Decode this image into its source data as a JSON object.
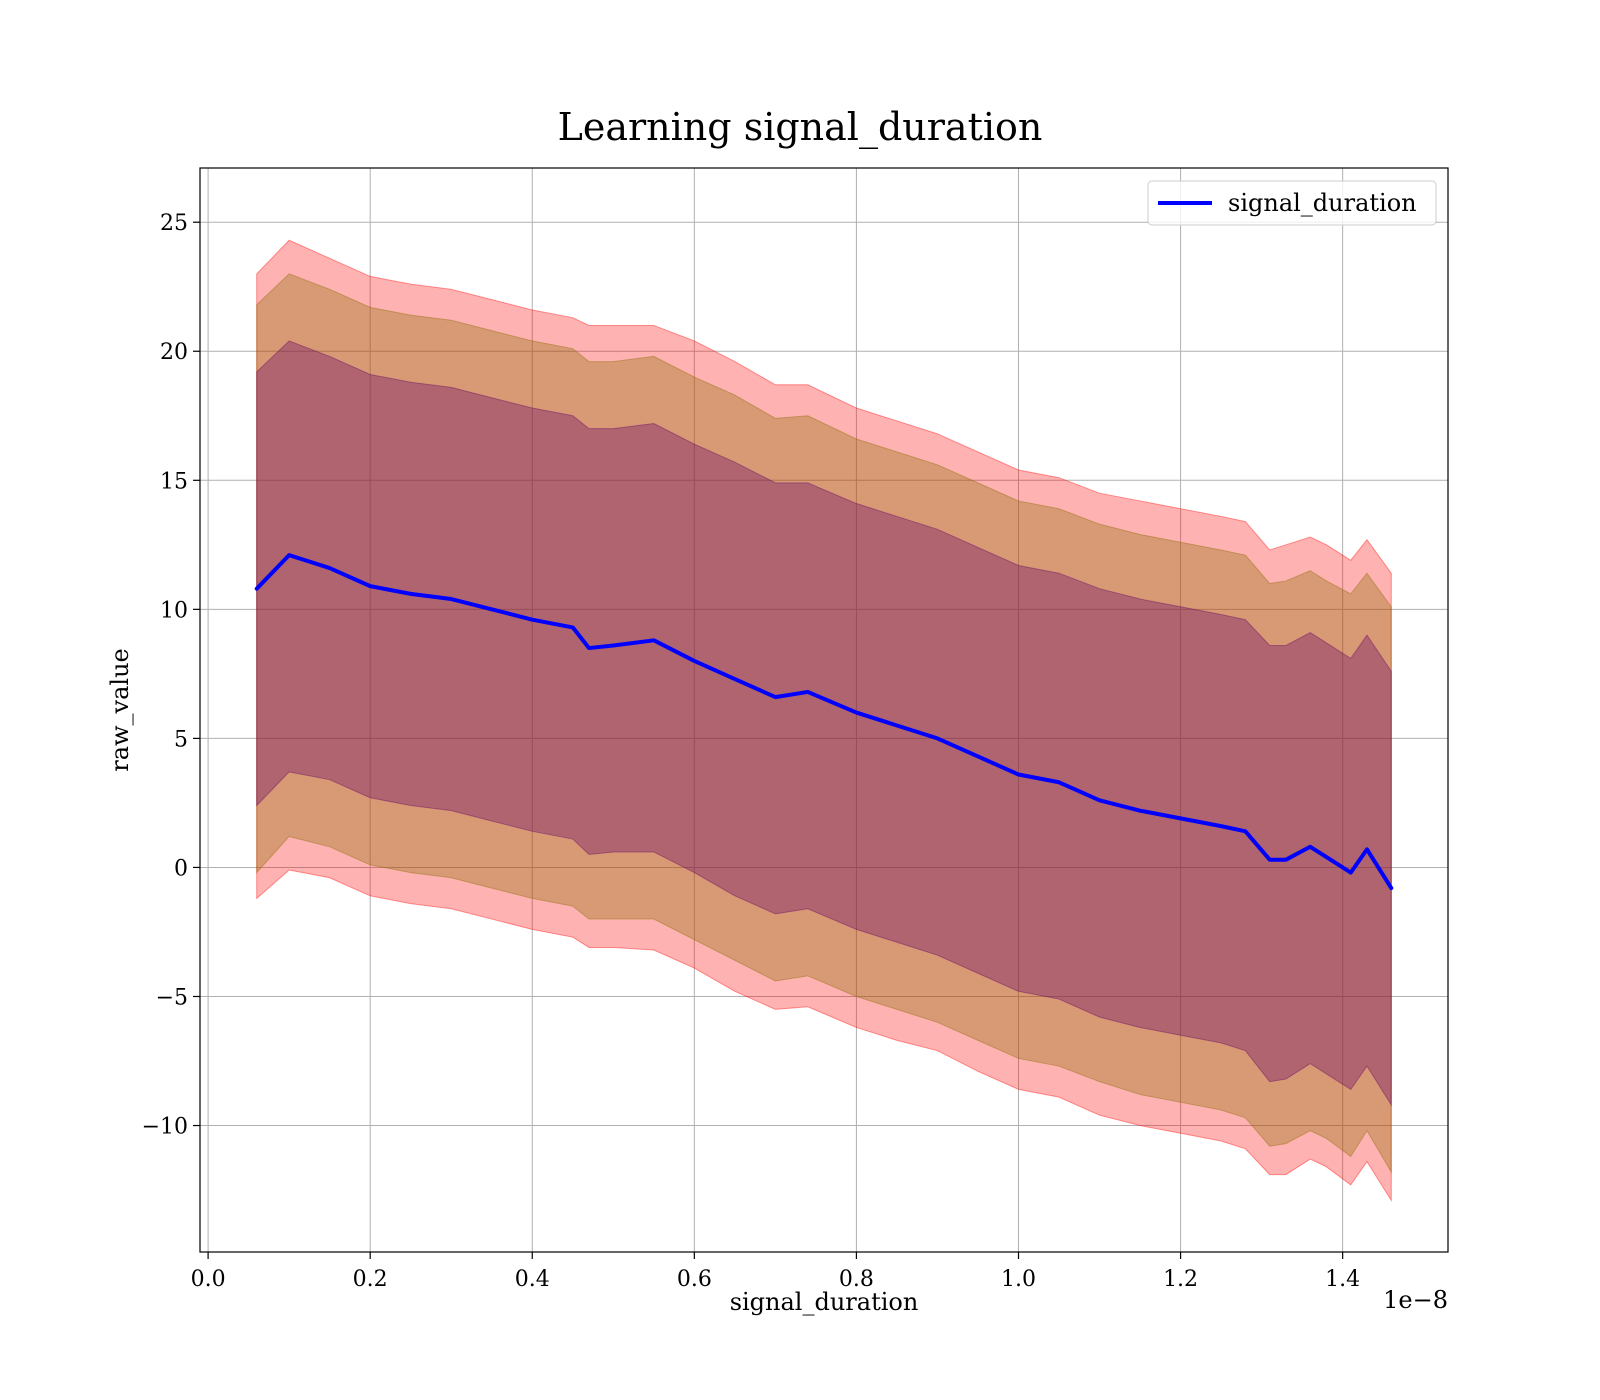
{
  "chart_data": {
    "type": "line",
    "title": "Learning signal_duration",
    "xlabel": "signal_duration",
    "ylabel": "raw_value",
    "x_scale_label": "1e−8",
    "xlim": [
      -0.01,
      1.53
    ],
    "ylim": [
      -14.9,
      27.1
    ],
    "xticks": [
      0.0,
      0.2,
      0.4,
      0.6,
      0.8,
      1.0,
      1.2,
      1.4
    ],
    "xtick_labels": [
      "0.0",
      "0.2",
      "0.4",
      "0.6",
      "0.8",
      "1.0",
      "1.2",
      "1.4"
    ],
    "yticks": [
      -10,
      -5,
      0,
      5,
      10,
      15,
      20,
      25
    ],
    "ytick_labels": [
      "−10",
      "−5",
      "0",
      "5",
      "10",
      "15",
      "20",
      "25"
    ],
    "grid": true,
    "legend_position": "top-right",
    "series": [
      {
        "name": "signal_duration",
        "color": "#0000ff",
        "x": [
          0.06,
          0.1,
          0.15,
          0.2,
          0.25,
          0.3,
          0.35,
          0.4,
          0.45,
          0.47,
          0.5,
          0.55,
          0.6,
          0.65,
          0.7,
          0.74,
          0.8,
          0.85,
          0.9,
          0.95,
          1.0,
          1.05,
          1.1,
          1.15,
          1.2,
          1.25,
          1.28,
          1.31,
          1.33,
          1.36,
          1.38,
          1.41,
          1.43,
          1.46
        ],
        "y": [
          10.8,
          12.1,
          11.6,
          10.9,
          10.6,
          10.4,
          10.0,
          9.6,
          9.3,
          8.5,
          8.6,
          8.8,
          8.0,
          7.3,
          6.6,
          6.8,
          6.0,
          5.5,
          5.0,
          4.3,
          3.6,
          3.3,
          2.6,
          2.2,
          1.9,
          1.6,
          1.4,
          0.3,
          0.3,
          0.8,
          0.4,
          -0.2,
          0.7,
          -0.8
        ]
      }
    ],
    "bands": [
      {
        "name": "outer",
        "color": "#ff0000",
        "opacity": 0.3,
        "x": [
          0.06,
          0.1,
          0.15,
          0.2,
          0.25,
          0.3,
          0.35,
          0.4,
          0.45,
          0.47,
          0.5,
          0.55,
          0.6,
          0.65,
          0.7,
          0.74,
          0.8,
          0.85,
          0.9,
          0.95,
          1.0,
          1.05,
          1.1,
          1.15,
          1.2,
          1.25,
          1.28,
          1.31,
          1.33,
          1.36,
          1.38,
          1.41,
          1.43,
          1.46
        ],
        "upper": [
          23.0,
          24.3,
          23.6,
          22.9,
          22.6,
          22.4,
          22.0,
          21.6,
          21.3,
          21.0,
          21.0,
          21.0,
          20.4,
          19.6,
          18.7,
          18.7,
          17.8,
          17.3,
          16.8,
          16.1,
          15.4,
          15.1,
          14.5,
          14.2,
          13.9,
          13.6,
          13.4,
          12.3,
          12.5,
          12.8,
          12.5,
          11.9,
          12.7,
          11.4
        ],
        "lower": [
          -1.2,
          -0.1,
          -0.4,
          -1.1,
          -1.4,
          -1.6,
          -2.0,
          -2.4,
          -2.7,
          -3.1,
          -3.1,
          -3.2,
          -3.9,
          -4.8,
          -5.5,
          -5.4,
          -6.2,
          -6.7,
          -7.1,
          -7.9,
          -8.6,
          -8.9,
          -9.6,
          -10.0,
          -10.3,
          -10.6,
          -10.9,
          -11.9,
          -11.9,
          -11.3,
          -11.6,
          -12.3,
          -11.4,
          -12.9
        ]
      },
      {
        "name": "middle",
        "color": "#8c6c00",
        "opacity": 0.35,
        "x": [
          0.06,
          0.1,
          0.15,
          0.2,
          0.25,
          0.3,
          0.35,
          0.4,
          0.45,
          0.47,
          0.5,
          0.55,
          0.6,
          0.65,
          0.7,
          0.74,
          0.8,
          0.85,
          0.9,
          0.95,
          1.0,
          1.05,
          1.1,
          1.15,
          1.2,
          1.25,
          1.28,
          1.31,
          1.33,
          1.36,
          1.38,
          1.41,
          1.43,
          1.46
        ],
        "upper": [
          21.8,
          23.0,
          22.4,
          21.7,
          21.4,
          21.2,
          20.8,
          20.4,
          20.1,
          19.6,
          19.6,
          19.8,
          19.0,
          18.3,
          17.4,
          17.5,
          16.6,
          16.1,
          15.6,
          14.9,
          14.2,
          13.9,
          13.3,
          12.9,
          12.6,
          12.3,
          12.1,
          11.0,
          11.1,
          11.5,
          11.1,
          10.6,
          11.4,
          10.1
        ],
        "lower": [
          -0.2,
          1.2,
          0.8,
          0.1,
          -0.2,
          -0.4,
          -0.8,
          -1.2,
          -1.5,
          -2.0,
          -2.0,
          -2.0,
          -2.8,
          -3.6,
          -4.4,
          -4.2,
          -5.0,
          -5.5,
          -6.0,
          -6.7,
          -7.4,
          -7.7,
          -8.3,
          -8.8,
          -9.1,
          -9.4,
          -9.7,
          -10.8,
          -10.7,
          -10.2,
          -10.5,
          -11.2,
          -10.2,
          -11.8
        ]
      },
      {
        "name": "inner",
        "color": "#660066",
        "opacity": 0.35,
        "x": [
          0.06,
          0.1,
          0.15,
          0.2,
          0.25,
          0.3,
          0.35,
          0.4,
          0.45,
          0.47,
          0.5,
          0.55,
          0.6,
          0.65,
          0.7,
          0.74,
          0.8,
          0.85,
          0.9,
          0.95,
          1.0,
          1.05,
          1.1,
          1.15,
          1.2,
          1.25,
          1.28,
          1.31,
          1.33,
          1.36,
          1.38,
          1.41,
          1.43,
          1.46
        ],
        "upper": [
          19.2,
          20.4,
          19.8,
          19.1,
          18.8,
          18.6,
          18.2,
          17.8,
          17.5,
          17.0,
          17.0,
          17.2,
          16.4,
          15.7,
          14.9,
          14.9,
          14.1,
          13.6,
          13.1,
          12.4,
          11.7,
          11.4,
          10.8,
          10.4,
          10.1,
          9.8,
          9.6,
          8.6,
          8.6,
          9.1,
          8.7,
          8.1,
          9.0,
          7.6
        ],
        "lower": [
          2.4,
          3.7,
          3.4,
          2.7,
          2.4,
          2.2,
          1.8,
          1.4,
          1.1,
          0.5,
          0.6,
          0.6,
          -0.2,
          -1.1,
          -1.8,
          -1.6,
          -2.4,
          -2.9,
          -3.4,
          -4.1,
          -4.8,
          -5.1,
          -5.8,
          -6.2,
          -6.5,
          -6.8,
          -7.1,
          -8.3,
          -8.2,
          -7.6,
          -8.0,
          -8.6,
          -7.7,
          -9.2
        ]
      }
    ]
  }
}
